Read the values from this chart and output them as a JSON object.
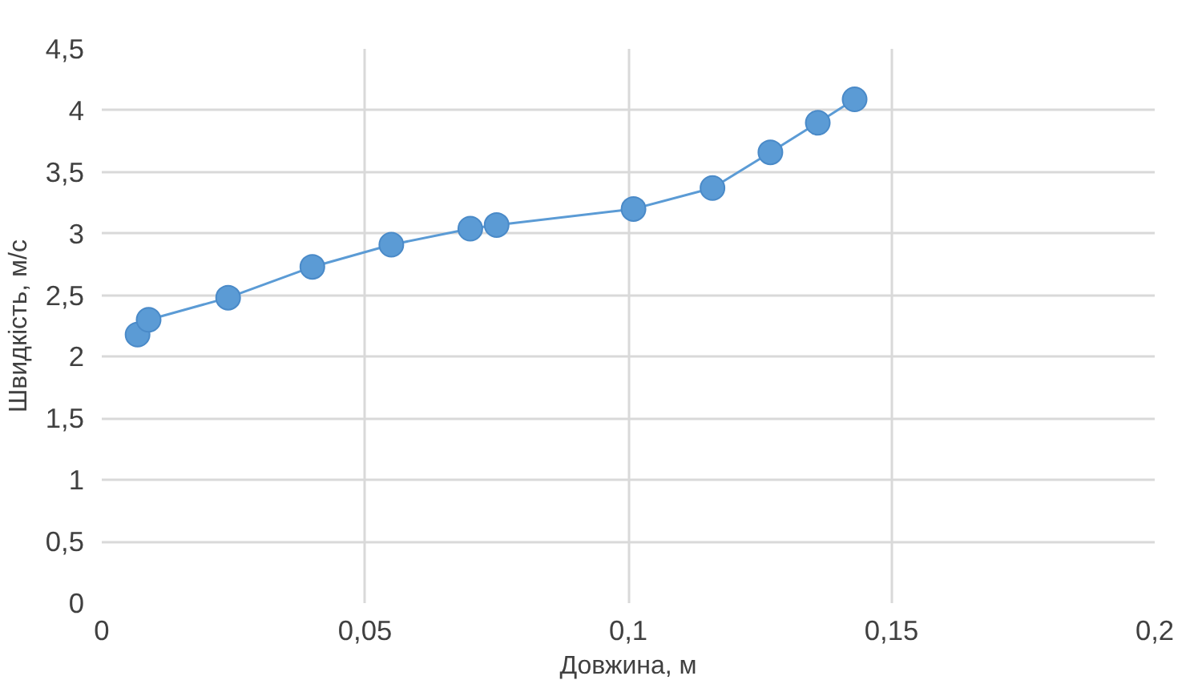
{
  "chart_data": {
    "type": "line",
    "xlabel": "Довжина, м",
    "ylabel": "Швидкість, м/с",
    "x": [
      0.0068,
      0.0089,
      0.024,
      0.04,
      0.055,
      0.07,
      0.075,
      0.101,
      0.116,
      0.127,
      0.136,
      0.143
    ],
    "series": [
      {
        "color": "#5b9bd5",
        "values": [
          2.18,
          2.3,
          2.48,
          2.73,
          2.91,
          3.04,
          3.07,
          3.2,
          3.37,
          3.66,
          3.9,
          4.09
        ]
      }
    ],
    "xlim": [
      0,
      0.2
    ],
    "xticks": [
      0,
      {
        "value": 0.05,
        "label": "0,05"
      },
      {
        "value": 0.1,
        "label": "0,1"
      },
      {
        "value": 0.15,
        "label": "0,15"
      },
      {
        "value": 0.2,
        "label": "0,2"
      }
    ],
    "ylim": [
      0,
      4.5
    ],
    "yticks": [
      0,
      {
        "value": 0.5,
        "label": "0,5"
      },
      1,
      {
        "value": 1.5,
        "label": "1,5"
      },
      2,
      {
        "value": 2.5,
        "label": "2,5"
      },
      3,
      {
        "value": 3.5,
        "label": "3,5"
      },
      4,
      {
        "value": 4.5,
        "label": "4,5"
      }
    ],
    "grid": true,
    "marker": "circle",
    "line_style": "solid"
  }
}
